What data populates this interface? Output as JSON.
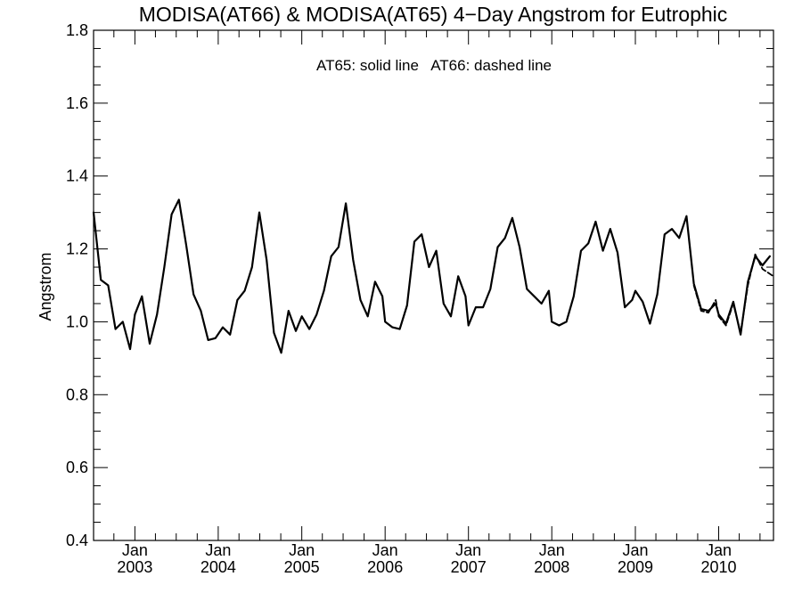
{
  "chart_data": {
    "type": "line",
    "title": "MODISA(AT66) & MODISA(AT65) 4−Day Angstrom for Eutrophic",
    "annotation": "AT65: solid line   AT66: dashed line",
    "xlabel": "",
    "ylabel": "Angstrom",
    "xlim": [
      "2002-07-04",
      "2010-08-29"
    ],
    "ylim": [
      0.4,
      1.8
    ],
    "yticks": [
      0.4,
      0.6,
      0.8,
      1.0,
      1.2,
      1.4,
      1.6,
      1.8
    ],
    "ytick_labels": [
      "0.4",
      "0.6",
      "0.8",
      "1.0",
      "1.2",
      "1.4",
      "1.6",
      "1.8"
    ],
    "xticks": [
      {
        "month": "Jan",
        "year": "2003",
        "date": "2003-01-01"
      },
      {
        "month": "Jan",
        "year": "2004",
        "date": "2004-01-01"
      },
      {
        "month": "Jan",
        "year": "2005",
        "date": "2005-01-01"
      },
      {
        "month": "Jan",
        "year": "2006",
        "date": "2006-01-01"
      },
      {
        "month": "Jan",
        "year": "2007",
        "date": "2007-01-01"
      },
      {
        "month": "Jan",
        "year": "2008",
        "date": "2008-01-01"
      },
      {
        "month": "Jan",
        "year": "2009",
        "date": "2009-01-01"
      },
      {
        "month": "Jan",
        "year": "2010",
        "date": "2010-01-01"
      }
    ],
    "series": [
      {
        "name": "AT65",
        "style": "solid",
        "color": "#000000",
        "points": [
          [
            "2002-07-04",
            1.3
          ],
          [
            "2002-08-05",
            1.115
          ],
          [
            "2002-09-06",
            1.1
          ],
          [
            "2002-10-08",
            0.98
          ],
          [
            "2002-11-09",
            1.0
          ],
          [
            "2002-12-11",
            0.925
          ],
          [
            "2003-01-01",
            1.02
          ],
          [
            "2003-02-01",
            1.07
          ],
          [
            "2003-03-07",
            0.94
          ],
          [
            "2003-04-08",
            1.02
          ],
          [
            "2003-05-10",
            1.15
          ],
          [
            "2003-06-11",
            1.295
          ],
          [
            "2003-07-13",
            1.335
          ],
          [
            "2003-08-14",
            1.21
          ],
          [
            "2003-09-15",
            1.075
          ],
          [
            "2003-10-17",
            1.03
          ],
          [
            "2003-11-18",
            0.95
          ],
          [
            "2003-12-20",
            0.955
          ],
          [
            "2004-01-21",
            0.985
          ],
          [
            "2004-02-22",
            0.965
          ],
          [
            "2004-03-25",
            1.06
          ],
          [
            "2004-04-26",
            1.085
          ],
          [
            "2004-05-28",
            1.15
          ],
          [
            "2004-06-29",
            1.3
          ],
          [
            "2004-07-31",
            1.17
          ],
          [
            "2004-09-01",
            0.97
          ],
          [
            "2004-10-03",
            0.915
          ],
          [
            "2004-11-04",
            1.03
          ],
          [
            "2004-12-06",
            0.975
          ],
          [
            "2005-01-01",
            1.015
          ],
          [
            "2005-02-03",
            0.98
          ],
          [
            "2005-03-07",
            1.02
          ],
          [
            "2005-04-08",
            1.085
          ],
          [
            "2005-05-10",
            1.18
          ],
          [
            "2005-06-11",
            1.205
          ],
          [
            "2005-07-13",
            1.325
          ],
          [
            "2005-08-14",
            1.17
          ],
          [
            "2005-09-15",
            1.06
          ],
          [
            "2005-10-17",
            1.015
          ],
          [
            "2005-11-18",
            1.11
          ],
          [
            "2005-12-20",
            1.07
          ],
          [
            "2006-01-01",
            1.0
          ],
          [
            "2006-02-02",
            0.985
          ],
          [
            "2006-03-06",
            0.98
          ],
          [
            "2006-04-07",
            1.045
          ],
          [
            "2006-05-09",
            1.22
          ],
          [
            "2006-06-10",
            1.24
          ],
          [
            "2006-07-12",
            1.15
          ],
          [
            "2006-08-13",
            1.195
          ],
          [
            "2006-09-14",
            1.05
          ],
          [
            "2006-10-16",
            1.015
          ],
          [
            "2006-11-17",
            1.125
          ],
          [
            "2006-12-19",
            1.07
          ],
          [
            "2007-01-01",
            0.99
          ],
          [
            "2007-02-02",
            1.04
          ],
          [
            "2007-03-06",
            1.04
          ],
          [
            "2007-04-07",
            1.09
          ],
          [
            "2007-05-09",
            1.205
          ],
          [
            "2007-06-10",
            1.23
          ],
          [
            "2007-07-12",
            1.285
          ],
          [
            "2007-08-13",
            1.205
          ],
          [
            "2007-09-14",
            1.09
          ],
          [
            "2007-10-16",
            1.07
          ],
          [
            "2007-11-17",
            1.05
          ],
          [
            "2007-12-19",
            1.085
          ],
          [
            "2008-01-01",
            1.0
          ],
          [
            "2008-02-02",
            0.99
          ],
          [
            "2008-03-05",
            1.0
          ],
          [
            "2008-04-06",
            1.07
          ],
          [
            "2008-05-08",
            1.195
          ],
          [
            "2008-06-09",
            1.215
          ],
          [
            "2008-07-11",
            1.275
          ],
          [
            "2008-08-12",
            1.195
          ],
          [
            "2008-09-13",
            1.255
          ],
          [
            "2008-10-15",
            1.19
          ],
          [
            "2008-11-16",
            1.04
          ],
          [
            "2008-12-18",
            1.06
          ],
          [
            "2009-01-01",
            1.085
          ],
          [
            "2009-02-02",
            1.055
          ],
          [
            "2009-03-06",
            0.995
          ],
          [
            "2009-04-07",
            1.075
          ],
          [
            "2009-05-09",
            1.24
          ],
          [
            "2009-06-10",
            1.255
          ],
          [
            "2009-07-12",
            1.23
          ],
          [
            "2009-08-13",
            1.29
          ],
          [
            "2009-09-14",
            1.105
          ],
          [
            "2009-10-16",
            1.035
          ],
          [
            "2009-11-17",
            1.03
          ],
          [
            "2009-12-19",
            1.05
          ],
          [
            "2010-01-01",
            1.02
          ],
          [
            "2010-02-02",
            0.995
          ],
          [
            "2010-03-06",
            1.055
          ],
          [
            "2010-04-07",
            0.965
          ],
          [
            "2010-05-09",
            1.11
          ],
          [
            "2010-06-10",
            1.18
          ],
          [
            "2010-07-12",
            1.155
          ],
          [
            "2010-08-13",
            1.18
          ]
        ]
      },
      {
        "name": "AT66",
        "style": "dashed",
        "color": "#000000",
        "points": [
          [
            "2009-09-14",
            1.1
          ],
          [
            "2009-10-16",
            1.03
          ],
          [
            "2009-11-17",
            1.025
          ],
          [
            "2009-12-19",
            1.06
          ],
          [
            "2010-01-01",
            1.015
          ],
          [
            "2010-02-02",
            0.99
          ],
          [
            "2010-03-06",
            1.05
          ],
          [
            "2010-04-07",
            0.97
          ],
          [
            "2010-05-09",
            1.1
          ],
          [
            "2010-06-10",
            1.185
          ],
          [
            "2010-07-12",
            1.145
          ],
          [
            "2010-08-29",
            1.125
          ]
        ]
      }
    ]
  }
}
